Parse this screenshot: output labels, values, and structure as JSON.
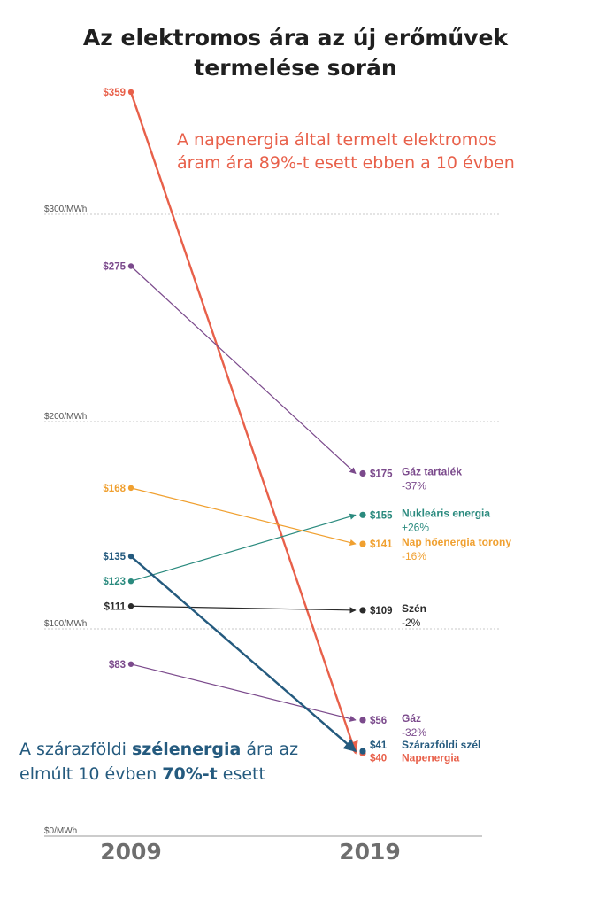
{
  "title_line1": "Az elektromos ára az új erőművek",
  "title_line2": "termelése során",
  "chart_data": {
    "type": "slope",
    "x_categories": [
      "2009",
      "2019"
    ],
    "ylim": [
      0,
      359
    ],
    "y_ticks": [
      {
        "value": 0,
        "label": "$0/MWh"
      },
      {
        "value": 100,
        "label": "$100/MWh"
      },
      {
        "value": 200,
        "label": "$200/MWh"
      },
      {
        "value": 300,
        "label": "$300/MWh"
      }
    ],
    "series": [
      {
        "name": "Napenergia",
        "change": "",
        "start": 359,
        "end": 40,
        "start_label": "$359",
        "end_label": "$40",
        "color": "#e8604a",
        "bold": true
      },
      {
        "name": "Gáz tartalék",
        "change": "-37%",
        "start": 275,
        "end": 175,
        "start_label": "$275",
        "end_label": "$175",
        "color": "#7b4a8c"
      },
      {
        "name": "Nukleáris energia",
        "change": "+26%",
        "start": 123,
        "end": 155,
        "start_label": "$123",
        "end_label": "$155",
        "color": "#2a8a7e"
      },
      {
        "name": "Nap hőenergia torony",
        "change": "-16%",
        "start": 168,
        "end": 141,
        "start_label": "$168",
        "end_label": "$141",
        "color": "#f0a030"
      },
      {
        "name": "Szén",
        "change": "-2%",
        "start": 111,
        "end": 109,
        "start_label": "$111",
        "end_label": "$109",
        "color": "#2b2b2b"
      },
      {
        "name": "Gáz",
        "change": "-32%",
        "start": 83,
        "end": 56,
        "start_label": "$83",
        "end_label": "$56",
        "color": "#7b4a8c"
      },
      {
        "name": "Szárazföldi szél",
        "change": "",
        "start": 135,
        "end": 41,
        "start_label": "$135",
        "end_label": "$41",
        "color": "#245a7e",
        "bold": true
      }
    ],
    "annotations": {
      "sun_line1": "A napenergia által termelt elektromos",
      "sun_line2": "áram ára 89%-t esett ebben a 10 évben",
      "wind_a": "A szárazföldi ",
      "wind_b": "szélenergia",
      "wind_c": " ára az",
      "wind_d": "elmúlt 10 évben ",
      "wind_e": "70%-t",
      "wind_f": " esett"
    }
  }
}
